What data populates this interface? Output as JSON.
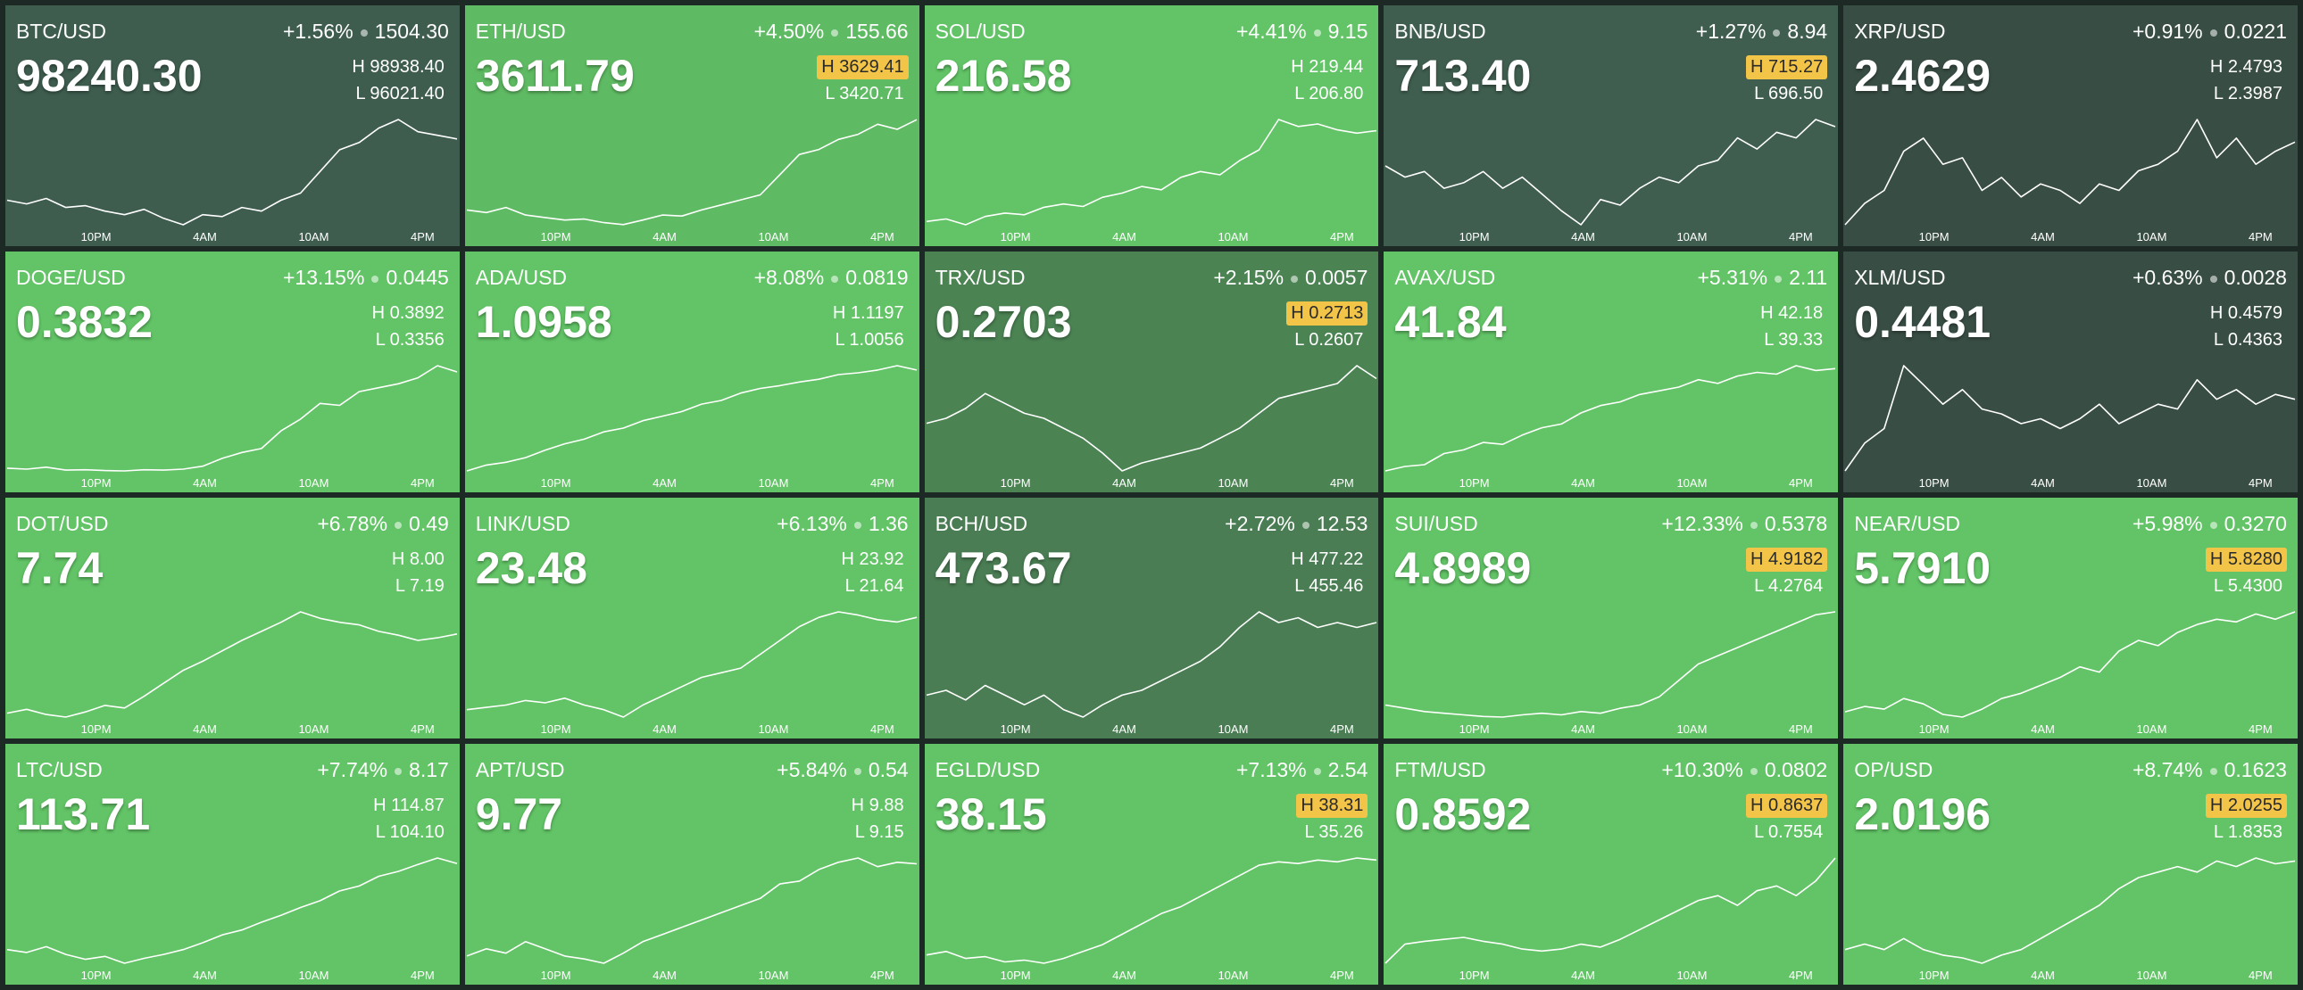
{
  "time_labels": [
    "10PM",
    "4AM",
    "10AM",
    "4PM"
  ],
  "tiles": [
    {
      "symbol": "BTC/USD",
      "change_pct": "+1.56%",
      "change": "1504.30",
      "price": "98240.30",
      "high": "98938.40",
      "low": "96021.40",
      "new_high": false,
      "color": "#3e5d4f",
      "spark": [
        96700,
        96600,
        96750,
        96500,
        96550,
        96400,
        96300,
        96450,
        96200,
        96021,
        96300,
        96250,
        96500,
        96400,
        96700,
        96900,
        97500,
        98100,
        98300,
        98700,
        98938,
        98600,
        98500,
        98400
      ]
    },
    {
      "symbol": "ETH/USD",
      "change_pct": "+4.50%",
      "change": "155.66",
      "price": "3611.79",
      "high": "3629.41",
      "low": "3420.71",
      "new_high": true,
      "color": "#5fbb63",
      "spark": [
        3450,
        3445,
        3455,
        3440,
        3435,
        3430,
        3432,
        3425,
        3421,
        3430,
        3440,
        3438,
        3450,
        3460,
        3470,
        3480,
        3520,
        3560,
        3570,
        3590,
        3600,
        3620,
        3610,
        3629
      ]
    },
    {
      "symbol": "SOL/USD",
      "change_pct": "+4.41%",
      "change": "9.15",
      "price": "216.58",
      "high": "219.44",
      "low": "206.80",
      "new_high": false,
      "color": "#62c466",
      "spark": [
        207.2,
        207.5,
        206.8,
        207.8,
        208.2,
        208.0,
        208.9,
        209.3,
        209.0,
        210.1,
        210.6,
        211.4,
        211.0,
        212.5,
        213.2,
        212.8,
        214.5,
        215.8,
        219.44,
        218.6,
        218.9,
        218.2,
        217.8,
        218.1
      ]
    },
    {
      "symbol": "BNB/USD",
      "change_pct": "+1.27%",
      "change": "8.94",
      "price": "713.40",
      "high": "715.27",
      "low": "696.50",
      "new_high": true,
      "color": "#3f5e4f",
      "spark": [
        707,
        705,
        706,
        703,
        704,
        706,
        703,
        705,
        702,
        699,
        696.5,
        701,
        700,
        703,
        705,
        704,
        707,
        708,
        712,
        710,
        713,
        712,
        715.27,
        714
      ]
    },
    {
      "symbol": "XRP/USD",
      "change_pct": "+0.91%",
      "change": "0.0221",
      "price": "2.4629",
      "high": "2.4793",
      "low": "2.3987",
      "new_high": false,
      "color": "#384d44",
      "spark": [
        2.3987,
        2.415,
        2.425,
        2.455,
        2.465,
        2.445,
        2.45,
        2.425,
        2.435,
        2.42,
        2.43,
        2.425,
        2.415,
        2.43,
        2.425,
        2.44,
        2.445,
        2.455,
        2.4793,
        2.45,
        2.465,
        2.445,
        2.455,
        2.462
      ]
    },
    {
      "symbol": "DOGE/USD",
      "change_pct": "+13.15%",
      "change": "0.0445",
      "price": "0.3832",
      "high": "0.3892",
      "low": "0.3356",
      "new_high": false,
      "color": "#62c466",
      "spark": [
        0.337,
        0.3365,
        0.3375,
        0.336,
        0.3362,
        0.3358,
        0.3356,
        0.3362,
        0.336,
        0.3365,
        0.338,
        0.342,
        0.345,
        0.347,
        0.356,
        0.362,
        0.37,
        0.369,
        0.376,
        0.378,
        0.38,
        0.383,
        0.3892,
        0.386
      ]
    },
    {
      "symbol": "ADA/USD",
      "change_pct": "+8.08%",
      "change": "0.0819",
      "price": "1.0958",
      "high": "1.1197",
      "low": "1.0056",
      "new_high": false,
      "color": "#62c466",
      "spark": [
        1.0056,
        1.012,
        1.015,
        1.02,
        1.028,
        1.035,
        1.04,
        1.048,
        1.052,
        1.06,
        1.065,
        1.07,
        1.078,
        1.082,
        1.09,
        1.095,
        1.098,
        1.102,
        1.105,
        1.11,
        1.112,
        1.115,
        1.1197,
        1.115
      ]
    },
    {
      "symbol": "TRX/USD",
      "change_pct": "+2.15%",
      "change": "0.0057",
      "price": "0.2703",
      "high": "0.2713",
      "low": "0.2607",
      "new_high": true,
      "color": "#4b8353",
      "spark": [
        0.2655,
        0.266,
        0.267,
        0.2685,
        0.2675,
        0.2665,
        0.266,
        0.265,
        0.264,
        0.2625,
        0.2607,
        0.2615,
        0.262,
        0.2625,
        0.263,
        0.264,
        0.265,
        0.2665,
        0.268,
        0.2685,
        0.269,
        0.2695,
        0.2713,
        0.27
      ]
    },
    {
      "symbol": "AVAX/USD",
      "change_pct": "+5.31%",
      "change": "2.11",
      "price": "41.84",
      "high": "42.18",
      "low": "39.33",
      "new_high": false,
      "color": "#62c466",
      "spark": [
        39.33,
        39.45,
        39.5,
        39.8,
        39.9,
        40.1,
        40.05,
        40.3,
        40.5,
        40.6,
        40.9,
        41.1,
        41.2,
        41.4,
        41.5,
        41.6,
        41.8,
        41.7,
        41.9,
        42.0,
        41.95,
        42.18,
        42.05,
        42.1
      ]
    },
    {
      "symbol": "XLM/USD",
      "change_pct": "+0.63%",
      "change": "0.0028",
      "price": "0.4481",
      "high": "0.4579",
      "low": "0.4363",
      "new_high": false,
      "color": "#384d44",
      "spark": [
        0.4363,
        0.442,
        0.445,
        0.4579,
        0.454,
        0.45,
        0.453,
        0.449,
        0.448,
        0.446,
        0.447,
        0.445,
        0.447,
        0.45,
        0.446,
        0.448,
        0.45,
        0.449,
        0.455,
        0.451,
        0.453,
        0.45,
        0.452,
        0.451
      ]
    },
    {
      "symbol": "DOT/USD",
      "change_pct": "+6.78%",
      "change": "0.49",
      "price": "7.74",
      "high": "8.00",
      "low": "7.19",
      "new_high": false,
      "color": "#62c466",
      "spark": [
        7.22,
        7.25,
        7.21,
        7.19,
        7.23,
        7.28,
        7.26,
        7.35,
        7.45,
        7.55,
        7.62,
        7.7,
        7.78,
        7.85,
        7.92,
        8.0,
        7.95,
        7.92,
        7.9,
        7.85,
        7.82,
        7.78,
        7.8,
        7.83
      ]
    },
    {
      "symbol": "LINK/USD",
      "change_pct": "+6.13%",
      "change": "1.36",
      "price": "23.48",
      "high": "23.92",
      "low": "21.64",
      "new_high": false,
      "color": "#62c466",
      "spark": [
        21.8,
        21.85,
        21.9,
        22.0,
        21.95,
        22.05,
        21.9,
        21.8,
        21.64,
        21.9,
        22.1,
        22.3,
        22.5,
        22.6,
        22.7,
        23.0,
        23.3,
        23.6,
        23.8,
        23.92,
        23.85,
        23.75,
        23.7,
        23.8
      ]
    },
    {
      "symbol": "BCH/USD",
      "change_pct": "+2.72%",
      "change": "12.53",
      "price": "473.67",
      "high": "477.22",
      "low": "455.46",
      "new_high": false,
      "color": "#4a7d53",
      "spark": [
        460,
        461,
        459,
        462,
        460,
        458,
        460,
        457,
        455.46,
        458,
        460,
        461,
        463,
        465,
        467,
        470,
        474,
        477.22,
        475,
        476,
        474,
        475,
        474,
        475
      ]
    },
    {
      "symbol": "SUI/USD",
      "change_pct": "+12.33%",
      "change": "0.5378",
      "price": "4.8989",
      "high": "4.9182",
      "low": "4.2764",
      "new_high": true,
      "color": "#62c466",
      "spark": [
        4.35,
        4.33,
        4.31,
        4.3,
        4.29,
        4.28,
        4.2764,
        4.29,
        4.3,
        4.29,
        4.31,
        4.3,
        4.33,
        4.35,
        4.4,
        4.5,
        4.6,
        4.65,
        4.7,
        4.75,
        4.8,
        4.85,
        4.9,
        4.9182
      ]
    },
    {
      "symbol": "NEAR/USD",
      "change_pct": "+5.98%",
      "change": "0.3270",
      "price": "5.7910",
      "high": "5.8280",
      "low": "5.4300",
      "new_high": true,
      "color": "#62c466",
      "spark": [
        5.45,
        5.47,
        5.46,
        5.5,
        5.48,
        5.44,
        5.43,
        5.46,
        5.5,
        5.52,
        5.55,
        5.58,
        5.62,
        5.6,
        5.68,
        5.72,
        5.7,
        5.75,
        5.78,
        5.8,
        5.79,
        5.82,
        5.8,
        5.828
      ]
    },
    {
      "symbol": "LTC/USD",
      "change_pct": "+7.74%",
      "change": "8.17",
      "price": "113.71",
      "high": "114.87",
      "low": "104.10",
      "new_high": false,
      "color": "#62c466",
      "spark": [
        105.5,
        105.2,
        105.8,
        105.0,
        104.5,
        104.8,
        104.1,
        104.6,
        105.0,
        105.5,
        106.2,
        107.0,
        107.5,
        108.3,
        109.0,
        109.8,
        110.5,
        111.5,
        112.0,
        113.0,
        113.5,
        114.2,
        114.87,
        114.3
      ]
    },
    {
      "symbol": "APT/USD",
      "change_pct": "+5.84%",
      "change": "0.54",
      "price": "9.77",
      "high": "9.88",
      "low": "9.15",
      "new_high": false,
      "color": "#62c466",
      "spark": [
        9.2,
        9.25,
        9.22,
        9.3,
        9.25,
        9.2,
        9.18,
        9.15,
        9.22,
        9.3,
        9.35,
        9.4,
        9.45,
        9.5,
        9.55,
        9.6,
        9.7,
        9.72,
        9.8,
        9.85,
        9.88,
        9.82,
        9.85,
        9.84
      ]
    },
    {
      "symbol": "EGLD/USD",
      "change_pct": "+7.13%",
      "change": "2.54",
      "price": "38.15",
      "high": "38.31",
      "low": "35.26",
      "new_high": true,
      "color": "#62c466",
      "spark": [
        35.5,
        35.6,
        35.4,
        35.45,
        35.3,
        35.35,
        35.26,
        35.4,
        35.6,
        35.8,
        36.1,
        36.4,
        36.7,
        36.9,
        37.2,
        37.5,
        37.8,
        38.1,
        38.2,
        38.15,
        38.25,
        38.2,
        38.31,
        38.25
      ]
    },
    {
      "symbol": "FTM/USD",
      "change_pct": "+10.30%",
      "change": "0.0802",
      "price": "0.8592",
      "high": "0.8637",
      "low": "0.7554",
      "new_high": true,
      "color": "#62c466",
      "spark": [
        0.7554,
        0.775,
        0.778,
        0.78,
        0.782,
        0.778,
        0.775,
        0.77,
        0.768,
        0.77,
        0.775,
        0.772,
        0.78,
        0.79,
        0.8,
        0.81,
        0.82,
        0.825,
        0.815,
        0.83,
        0.835,
        0.825,
        0.84,
        0.8637
      ]
    },
    {
      "symbol": "OP/USD",
      "change_pct": "+8.74%",
      "change": "0.1623",
      "price": "2.0196",
      "high": "2.0255",
      "low": "1.8353",
      "new_high": true,
      "color": "#62c466",
      "spark": [
        1.86,
        1.87,
        1.86,
        1.88,
        1.86,
        1.85,
        1.845,
        1.8353,
        1.85,
        1.86,
        1.88,
        1.9,
        1.92,
        1.94,
        1.97,
        1.99,
        2.0,
        2.01,
        2.0,
        2.02,
        2.01,
        2.0255,
        2.015,
        2.02
      ]
    }
  ]
}
